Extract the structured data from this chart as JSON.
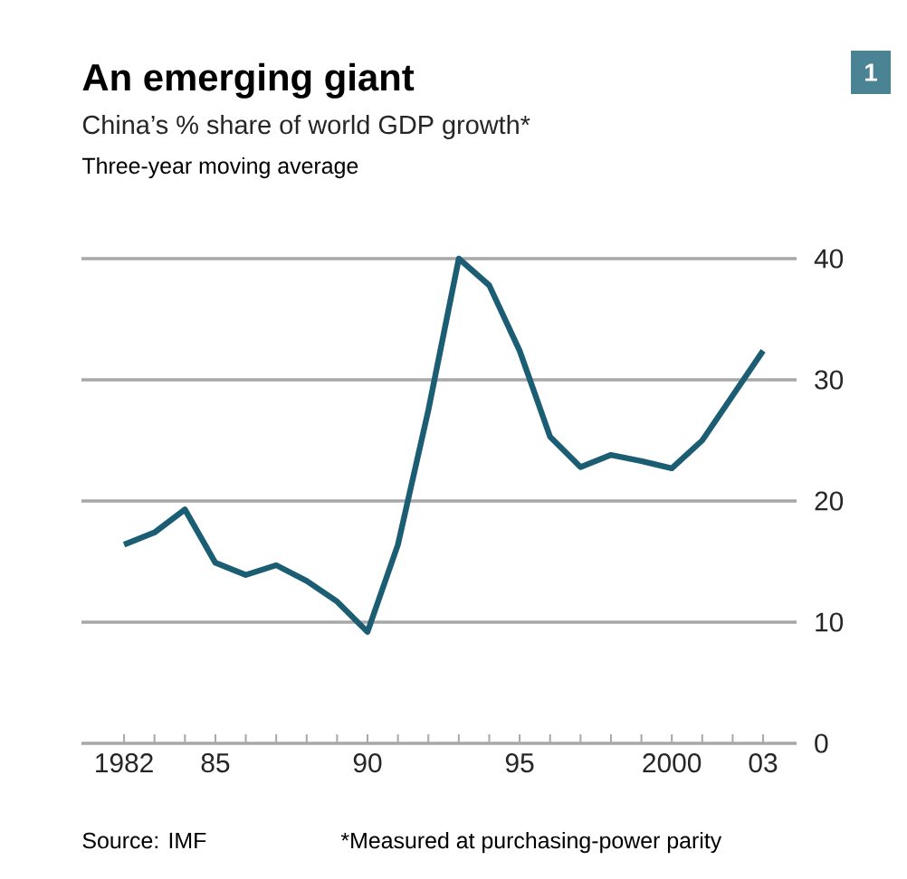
{
  "chart_data": {
    "type": "line",
    "title": "An emerging giant",
    "subtitle": "China’s % share of world GDP growth*",
    "annotations": [
      "Three-year moving average",
      "Source: IMF",
      "*Measured at purchasing-power parity",
      "1"
    ],
    "x": [
      1982,
      1983,
      1984,
      1985,
      1986,
      1987,
      1988,
      1989,
      1990,
      1991,
      1992,
      1993,
      1994,
      1995,
      1996,
      1997,
      1998,
      1999,
      2000,
      2001,
      2002,
      2003
    ],
    "series": [
      {
        "color": "#1b5e73",
        "values": [
          16.4,
          17.4,
          19.3,
          14.9,
          13.9,
          14.7,
          13.4,
          11.7,
          9.2,
          16.4,
          27.5,
          40.0,
          37.8,
          32.4,
          25.3,
          22.8,
          23.8,
          23.3,
          22.7,
          25.0,
          28.7,
          32.4
        ]
      }
    ],
    "xlim": [
      1980.6,
      2004.1
    ],
    "ylim": [
      0,
      40
    ],
    "xticks": [
      {
        "value": 1982,
        "label": "1982"
      },
      {
        "value": 1983,
        "label": null
      },
      {
        "value": 1984,
        "label": null
      },
      {
        "value": 1985,
        "label": "85"
      },
      {
        "value": 1986,
        "label": null
      },
      {
        "value": 1987,
        "label": null
      },
      {
        "value": 1988,
        "label": null
      },
      {
        "value": 1989,
        "label": null
      },
      {
        "value": 1990,
        "label": "90"
      },
      {
        "value": 1991,
        "label": null
      },
      {
        "value": 1992,
        "label": null
      },
      {
        "value": 1993,
        "label": null
      },
      {
        "value": 1994,
        "label": null
      },
      {
        "value": 1995,
        "label": "95"
      },
      {
        "value": 1996,
        "label": null
      },
      {
        "value": 1997,
        "label": null
      },
      {
        "value": 1998,
        "label": null
      },
      {
        "value": 1999,
        "label": null
      },
      {
        "value": 2000,
        "label": "2000"
      },
      {
        "value": 2001,
        "label": null
      },
      {
        "value": 2002,
        "label": null
      },
      {
        "value": 2003,
        "label": "03"
      }
    ],
    "yticks": [
      0,
      10,
      20,
      30,
      40
    ],
    "grid": "y"
  }
}
